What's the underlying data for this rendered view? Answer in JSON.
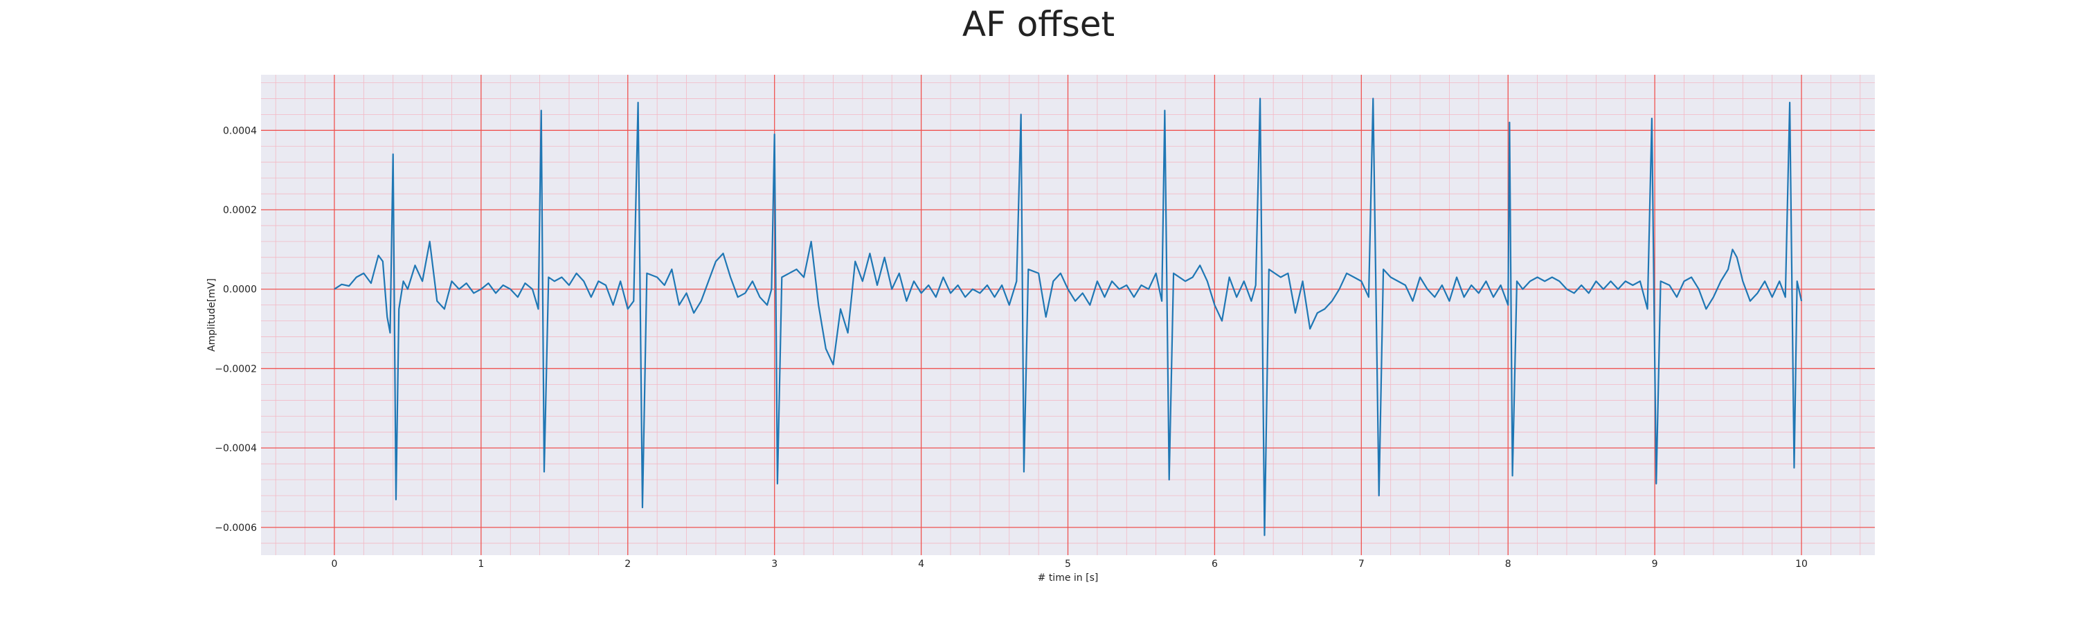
{
  "chart_data": {
    "type": "line",
    "title": "AF offset",
    "xlabel": "# time in [s]",
    "ylabel": "Amplitude[mV]",
    "xlim": [
      -0.5,
      10.5
    ],
    "ylim": [
      -0.00067,
      0.00054
    ],
    "x_ticks": [
      0,
      1,
      2,
      3,
      4,
      5,
      6,
      7,
      8,
      9,
      10
    ],
    "x_tick_labels": [
      "0",
      "1",
      "2",
      "3",
      "4",
      "5",
      "6",
      "7",
      "8",
      "9",
      "10"
    ],
    "y_ticks": [
      0.0004,
      0.0002,
      0.0,
      -0.0002,
      -0.0004,
      -0.0006
    ],
    "y_tick_labels": [
      "0.0004",
      "0.0002",
      "0.0000",
      "−0.0002",
      "−0.0004",
      "−0.0006"
    ],
    "grid": {
      "major": true,
      "minor": true
    },
    "colors": {
      "line": "#1f77b4",
      "plot_background": "#eaeaf2",
      "major_grid": "#ef5350",
      "minor_grid": "#f3b8c4",
      "text": "#222222"
    },
    "series": [
      {
        "values": [
          [
            0.0,
            0.0
          ],
          [
            0.05,
            1.2e-05
          ],
          [
            0.1,
            8e-06
          ],
          [
            0.15,
            3e-05
          ],
          [
            0.2,
            4e-05
          ],
          [
            0.25,
            1.5e-05
          ],
          [
            0.3,
            8.5e-05
          ],
          [
            0.33,
            7e-05
          ],
          [
            0.36,
            -7e-05
          ],
          [
            0.38,
            -0.00011
          ],
          [
            0.4,
            0.00034
          ],
          [
            0.42,
            -0.00053
          ],
          [
            0.44,
            -5e-05
          ],
          [
            0.47,
            2e-05
          ],
          [
            0.5,
            0.0
          ],
          [
            0.55,
            6e-05
          ],
          [
            0.6,
            2e-05
          ],
          [
            0.65,
            0.00012
          ],
          [
            0.7,
            -3e-05
          ],
          [
            0.75,
            -5e-05
          ],
          [
            0.8,
            2e-05
          ],
          [
            0.85,
            0.0
          ],
          [
            0.9,
            1.5e-05
          ],
          [
            0.95,
            -1e-05
          ],
          [
            1.0,
            0.0
          ],
          [
            1.05,
            1.5e-05
          ],
          [
            1.1,
            -1e-05
          ],
          [
            1.15,
            1e-05
          ],
          [
            1.2,
            0.0
          ],
          [
            1.25,
            -2e-05
          ],
          [
            1.3,
            1.5e-05
          ],
          [
            1.35,
            0.0
          ],
          [
            1.39,
            -5e-05
          ],
          [
            1.41,
            0.00045
          ],
          [
            1.43,
            -0.00046
          ],
          [
            1.46,
            3e-05
          ],
          [
            1.5,
            2e-05
          ],
          [
            1.55,
            3e-05
          ],
          [
            1.6,
            1e-05
          ],
          [
            1.65,
            4e-05
          ],
          [
            1.7,
            2e-05
          ],
          [
            1.75,
            -2e-05
          ],
          [
            1.8,
            2e-05
          ],
          [
            1.85,
            1e-05
          ],
          [
            1.9,
            -4e-05
          ],
          [
            1.95,
            2e-05
          ],
          [
            2.0,
            -5e-05
          ],
          [
            2.04,
            -3e-05
          ],
          [
            2.07,
            0.00047
          ],
          [
            2.1,
            -0.00055
          ],
          [
            2.13,
            4e-05
          ],
          [
            2.2,
            3e-05
          ],
          [
            2.25,
            1e-05
          ],
          [
            2.3,
            5e-05
          ],
          [
            2.35,
            -4e-05
          ],
          [
            2.4,
            -1e-05
          ],
          [
            2.45,
            -6e-05
          ],
          [
            2.5,
            -3e-05
          ],
          [
            2.55,
            2e-05
          ],
          [
            2.6,
            7e-05
          ],
          [
            2.65,
            9e-05
          ],
          [
            2.7,
            3e-05
          ],
          [
            2.75,
            -2e-05
          ],
          [
            2.8,
            -1e-05
          ],
          [
            2.85,
            2e-05
          ],
          [
            2.9,
            -2e-05
          ],
          [
            2.95,
            -4e-05
          ],
          [
            2.98,
            0.0
          ],
          [
            3.0,
            0.00039
          ],
          [
            3.02,
            -0.00049
          ],
          [
            3.05,
            3e-05
          ],
          [
            3.1,
            4e-05
          ],
          [
            3.15,
            5e-05
          ],
          [
            3.2,
            3e-05
          ],
          [
            3.25,
            0.00012
          ],
          [
            3.3,
            -4e-05
          ],
          [
            3.35,
            -0.00015
          ],
          [
            3.4,
            -0.00019
          ],
          [
            3.45,
            -5e-05
          ],
          [
            3.5,
            -0.00011
          ],
          [
            3.55,
            7e-05
          ],
          [
            3.6,
            2e-05
          ],
          [
            3.65,
            9e-05
          ],
          [
            3.7,
            1e-05
          ],
          [
            3.75,
            8e-05
          ],
          [
            3.8,
            0.0
          ],
          [
            3.85,
            4e-05
          ],
          [
            3.9,
            -3e-05
          ],
          [
            3.95,
            2e-05
          ],
          [
            4.0,
            -1e-05
          ],
          [
            4.05,
            1e-05
          ],
          [
            4.1,
            -2e-05
          ],
          [
            4.15,
            3e-05
          ],
          [
            4.2,
            -1e-05
          ],
          [
            4.25,
            1e-05
          ],
          [
            4.3,
            -2e-05
          ],
          [
            4.35,
            0.0
          ],
          [
            4.4,
            -1e-05
          ],
          [
            4.45,
            1e-05
          ],
          [
            4.5,
            -2e-05
          ],
          [
            4.55,
            1e-05
          ],
          [
            4.6,
            -4e-05
          ],
          [
            4.65,
            2e-05
          ],
          [
            4.68,
            0.00044
          ],
          [
            4.7,
            -0.00046
          ],
          [
            4.73,
            5e-05
          ],
          [
            4.8,
            4e-05
          ],
          [
            4.85,
            -7e-05
          ],
          [
            4.9,
            2e-05
          ],
          [
            4.95,
            4e-05
          ],
          [
            5.0,
            0.0
          ],
          [
            5.05,
            -3e-05
          ],
          [
            5.1,
            -1e-05
          ],
          [
            5.15,
            -4e-05
          ],
          [
            5.2,
            2e-05
          ],
          [
            5.25,
            -2e-05
          ],
          [
            5.3,
            2e-05
          ],
          [
            5.35,
            0.0
          ],
          [
            5.4,
            1e-05
          ],
          [
            5.45,
            -2e-05
          ],
          [
            5.5,
            1e-05
          ],
          [
            5.55,
            0.0
          ],
          [
            5.6,
            4e-05
          ],
          [
            5.64,
            -3e-05
          ],
          [
            5.66,
            0.00045
          ],
          [
            5.69,
            -0.00048
          ],
          [
            5.72,
            4e-05
          ],
          [
            5.8,
            2e-05
          ],
          [
            5.85,
            3e-05
          ],
          [
            5.9,
            6e-05
          ],
          [
            5.95,
            2e-05
          ],
          [
            6.0,
            -4e-05
          ],
          [
            6.05,
            -8e-05
          ],
          [
            6.1,
            3e-05
          ],
          [
            6.15,
            -2e-05
          ],
          [
            6.2,
            2e-05
          ],
          [
            6.25,
            -3e-05
          ],
          [
            6.28,
            1e-05
          ],
          [
            6.31,
            0.00048
          ],
          [
            6.34,
            -0.00062
          ],
          [
            6.37,
            5e-05
          ],
          [
            6.45,
            3e-05
          ],
          [
            6.5,
            4e-05
          ],
          [
            6.55,
            -6e-05
          ],
          [
            6.6,
            2e-05
          ],
          [
            6.65,
            -0.0001
          ],
          [
            6.7,
            -6e-05
          ],
          [
            6.75,
            -5e-05
          ],
          [
            6.8,
            -3e-05
          ],
          [
            6.85,
            0.0
          ],
          [
            6.9,
            4e-05
          ],
          [
            6.95,
            3e-05
          ],
          [
            7.0,
            2e-05
          ],
          [
            7.05,
            -2e-05
          ],
          [
            7.08,
            0.00048
          ],
          [
            7.12,
            -0.00052
          ],
          [
            7.15,
            5e-05
          ],
          [
            7.2,
            3e-05
          ],
          [
            7.25,
            2e-05
          ],
          [
            7.3,
            1e-05
          ],
          [
            7.35,
            -3e-05
          ],
          [
            7.4,
            3e-05
          ],
          [
            7.45,
            0.0
          ],
          [
            7.5,
            -2e-05
          ],
          [
            7.55,
            1e-05
          ],
          [
            7.6,
            -3e-05
          ],
          [
            7.65,
            3e-05
          ],
          [
            7.7,
            -2e-05
          ],
          [
            7.75,
            1e-05
          ],
          [
            7.8,
            -1e-05
          ],
          [
            7.85,
            2e-05
          ],
          [
            7.9,
            -2e-05
          ],
          [
            7.95,
            1e-05
          ],
          [
            8.0,
            -4e-05
          ],
          [
            8.01,
            0.00042
          ],
          [
            8.03,
            -0.00047
          ],
          [
            8.06,
            2e-05
          ],
          [
            8.1,
            0.0
          ],
          [
            8.15,
            2e-05
          ],
          [
            8.2,
            3e-05
          ],
          [
            8.25,
            2e-05
          ],
          [
            8.3,
            3e-05
          ],
          [
            8.35,
            2e-05
          ],
          [
            8.4,
            0.0
          ],
          [
            8.45,
            -1e-05
          ],
          [
            8.5,
            1e-05
          ],
          [
            8.55,
            -1e-05
          ],
          [
            8.6,
            2e-05
          ],
          [
            8.65,
            0.0
          ],
          [
            8.7,
            2e-05
          ],
          [
            8.75,
            0.0
          ],
          [
            8.8,
            2e-05
          ],
          [
            8.85,
            1e-05
          ],
          [
            8.9,
            2e-05
          ],
          [
            8.95,
            -5e-05
          ],
          [
            8.98,
            0.00043
          ],
          [
            9.01,
            -0.00049
          ],
          [
            9.04,
            2e-05
          ],
          [
            9.1,
            1e-05
          ],
          [
            9.15,
            -2e-05
          ],
          [
            9.2,
            2e-05
          ],
          [
            9.25,
            3e-05
          ],
          [
            9.3,
            0.0
          ],
          [
            9.35,
            -5e-05
          ],
          [
            9.4,
            -2e-05
          ],
          [
            9.45,
            2e-05
          ],
          [
            9.5,
            5e-05
          ],
          [
            9.53,
            0.0001
          ],
          [
            9.56,
            8e-05
          ],
          [
            9.6,
            2e-05
          ],
          [
            9.65,
            -3e-05
          ],
          [
            9.7,
            -1e-05
          ],
          [
            9.75,
            2e-05
          ],
          [
            9.8,
            -2e-05
          ],
          [
            9.85,
            2e-05
          ],
          [
            9.89,
            -2e-05
          ],
          [
            9.92,
            0.00047
          ],
          [
            9.95,
            -0.00045
          ],
          [
            9.97,
            2e-05
          ],
          [
            10.0,
            -3e-05
          ]
        ]
      }
    ]
  }
}
